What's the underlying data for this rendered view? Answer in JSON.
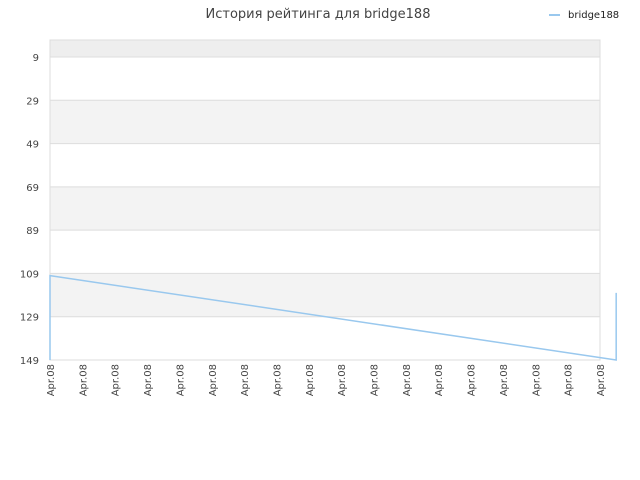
{
  "chart_data": {
    "type": "line",
    "title": "История рейтинга для bridge188",
    "xlabel": "",
    "ylabel": "",
    "legend_position": "top-right",
    "grid": true,
    "y_inverted": true,
    "ylim": [
      9,
      149
    ],
    "y_ticks": [
      9,
      29,
      49,
      69,
      89,
      109,
      129,
      149
    ],
    "x_tick_labels": [
      "Apr.08",
      "Apr.08",
      "Apr.08",
      "Apr.08",
      "Apr.08",
      "Apr.08",
      "Apr.08",
      "Apr.08",
      "Apr.08",
      "Apr.08",
      "Apr.08",
      "Apr.08",
      "Apr.08",
      "Apr.08",
      "Apr.08",
      "Apr.08",
      "Apr.08",
      "Apr.08"
    ],
    "series": [
      {
        "name": "bridge188",
        "color": "#99c8ee",
        "x": [
          0.0,
          0.0,
          17.5,
          17.5
        ],
        "values": [
          149,
          110,
          149,
          118
        ]
      }
    ]
  }
}
